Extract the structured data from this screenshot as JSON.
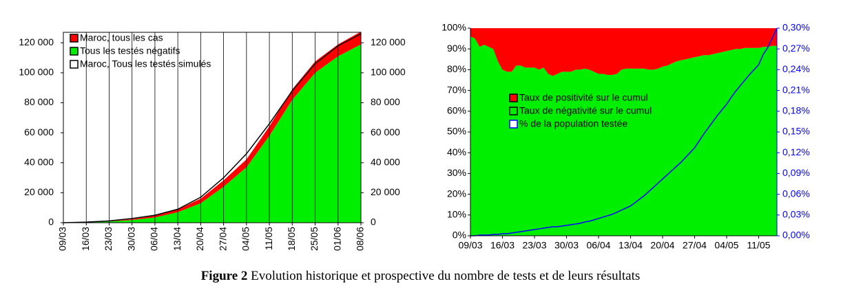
{
  "chart_data": [
    {
      "type": "area",
      "categories": [
        "09/03",
        "16/03",
        "23/03",
        "30/03",
        "06/04",
        "13/04",
        "20/04",
        "27/04",
        "04/05",
        "11/05",
        "18/05",
        "25/05",
        "01/06",
        "08/06"
      ],
      "series": [
        {
          "name": "Maroc, tous les cas",
          "color": "#ff0000",
          "kind": "area",
          "values": [
            2,
            29,
            143,
            556,
            1184,
            1763,
            3046,
            4252,
            5219,
            6281,
            6972,
            7577,
            7943,
            8437
          ]
        },
        {
          "name": "Tous les testés négatifs",
          "color": "#00ee00",
          "kind": "area",
          "values": [
            0,
            300,
            800,
            1800,
            3500,
            7000,
            13000,
            24000,
            37000,
            58000,
            82000,
            100000,
            111000,
            119000
          ]
        },
        {
          "name": "Maroc, Tous les testés simulés",
          "color": "#000000",
          "kind": "line",
          "values": [
            0,
            400,
            1200,
            2800,
            5000,
            9000,
            17000,
            30000,
            46000,
            66000,
            88000,
            106000,
            118000,
            126000
          ]
        }
      ],
      "ylim": [
        0,
        127000
      ],
      "yticks": [
        0,
        {
          "value": 20000,
          "label": "20 000"
        },
        {
          "value": 40000,
          "label": "40 000"
        },
        {
          "value": 60000,
          "label": "60 000"
        },
        {
          "value": 80000,
          "label": "80 000"
        },
        {
          "value": 100000,
          "label": "100 000"
        },
        {
          "value": 120000,
          "label": "120 000"
        }
      ],
      "y2lim": [
        0,
        127000
      ],
      "y2ticks": [
        0,
        {
          "value": 20000,
          "label": "20 000"
        },
        {
          "value": 40000,
          "label": "40 000"
        },
        {
          "value": 60000,
          "label": "60 000"
        },
        {
          "value": 80000,
          "label": "80 000"
        },
        {
          "value": 100000,
          "label": "100 000"
        },
        {
          "value": 120000,
          "label": "120 000"
        }
      ],
      "grid": "x",
      "legend": "upper left"
    },
    {
      "type": "area",
      "categories": [
        "09/03",
        null,
        null,
        null,
        null,
        null,
        null,
        "16/03",
        null,
        null,
        null,
        null,
        null,
        null,
        "23/03",
        null,
        null,
        null,
        null,
        null,
        null,
        "30/03",
        null,
        null,
        null,
        null,
        null,
        null,
        "06/04",
        null,
        null,
        null,
        null,
        null,
        null,
        "13/04",
        null,
        null,
        null,
        null,
        null,
        null,
        "20/04",
        null,
        null,
        null,
        null,
        null,
        null,
        "27/04",
        null,
        null,
        null,
        null,
        null,
        null,
        "04/05",
        null,
        null,
        null,
        null,
        null,
        null,
        "11/05",
        null,
        null,
        null,
        null
      ],
      "series": [
        {
          "name": "Taux de positivité sur le cumul",
          "color": "#ff0000",
          "kind": "area",
          "values": [
            4,
            5,
            9,
            8,
            9,
            10,
            16,
            20,
            21,
            21,
            18,
            18,
            19,
            19,
            19,
            20,
            19,
            22,
            23,
            22,
            21,
            21,
            21,
            20,
            20,
            19.5,
            20,
            21,
            22,
            22,
            22.5,
            22.5,
            22,
            20,
            19.5,
            19.5,
            19.5,
            19.5,
            19.5,
            20,
            20,
            19.5,
            18.5,
            18,
            17,
            16,
            15.5,
            15,
            14.5,
            14,
            13.5,
            13,
            13,
            12.5,
            12,
            11.5,
            11,
            10.5,
            10,
            10,
            9.5,
            9.5,
            9.5,
            9.5,
            9,
            9,
            8.5,
            8.5
          ]
        },
        {
          "name": "Taux de négativité sur le cumul",
          "color": "#00ee00",
          "kind": "area",
          "values": [
            96,
            95,
            91,
            92,
            91,
            90,
            84,
            80,
            79,
            79,
            82,
            82,
            81,
            81,
            81,
            80,
            81,
            78,
            77,
            78,
            79,
            79,
            79,
            80,
            80,
            80.5,
            80,
            79,
            78,
            78,
            77.5,
            77.5,
            78,
            80,
            80.5,
            80.5,
            80.5,
            80.5,
            80.5,
            80,
            80,
            80.5,
            81.5,
            82,
            83,
            84,
            84.5,
            85,
            85.5,
            86,
            86.5,
            87,
            87,
            87.5,
            88,
            88.5,
            89,
            89.5,
            90,
            90,
            90.5,
            90.5,
            90.5,
            90.5,
            91,
            91,
            91.5,
            91.5
          ]
        },
        {
          "name": "% de la population testée",
          "color": "#0000ff",
          "kind": "line",
          "axis": "y2",
          "values": [
            0,
            0,
            0.001,
            0.001,
            0.001,
            0.002,
            0.002,
            0.003,
            0.003,
            0.004,
            0.005,
            0.006,
            0.007,
            0.008,
            0.009,
            0.01,
            0.011,
            0.012,
            0.013,
            0.013,
            0.014,
            0.015,
            0.016,
            0.017,
            0.018,
            0.02,
            0.021,
            0.023,
            0.025,
            0.027,
            0.029,
            0.031,
            0.034,
            0.037,
            0.04,
            0.043,
            0.048,
            0.053,
            0.058,
            0.064,
            0.07,
            0.076,
            0.082,
            0.088,
            0.094,
            0.1,
            0.106,
            0.113,
            0.12,
            0.127,
            0.137,
            0.147,
            0.156,
            0.165,
            0.174,
            0.182,
            0.19,
            0.2,
            0.209,
            0.217,
            0.225,
            0.233,
            0.24,
            0.247,
            0.262,
            0.272,
            0.286,
            0.3
          ]
        }
      ],
      "ylim": [
        0,
        100
      ],
      "yticks": [
        {
          "value": 0,
          "label": "0%"
        },
        {
          "value": 10,
          "label": "10%"
        },
        {
          "value": 20,
          "label": "20%"
        },
        {
          "value": 30,
          "label": "30%"
        },
        {
          "value": 40,
          "label": "40%"
        },
        {
          "value": 50,
          "label": "50%"
        },
        {
          "value": 60,
          "label": "60%"
        },
        {
          "value": 70,
          "label": "70%"
        },
        {
          "value": 80,
          "label": "80%"
        },
        {
          "value": 90,
          "label": "90%"
        },
        {
          "value": 100,
          "label": "100%"
        }
      ],
      "y2lim": [
        0,
        0.3
      ],
      "y2ticks": [
        {
          "value": 0,
          "label": "0,00%"
        },
        {
          "value": 0.03,
          "label": "0,03%"
        },
        {
          "value": 0.06,
          "label": "0,06%"
        },
        {
          "value": 0.09,
          "label": "0,09%"
        },
        {
          "value": 0.12,
          "label": "0,12%"
        },
        {
          "value": 0.15,
          "label": "0,15%"
        },
        {
          "value": 0.18,
          "label": "0,18%"
        },
        {
          "value": 0.21,
          "label": "0,21%"
        },
        {
          "value": 0.24,
          "label": "0,24%"
        },
        {
          "value": 0.27,
          "label": "0,27%"
        },
        {
          "value": 0.3,
          "label": "0,30%"
        }
      ],
      "grid": false,
      "legend": "center left"
    }
  ],
  "caption": {
    "label": "Figure 2",
    "text": "Evolution historique et prospective du nombre de tests et de leurs résultats"
  }
}
